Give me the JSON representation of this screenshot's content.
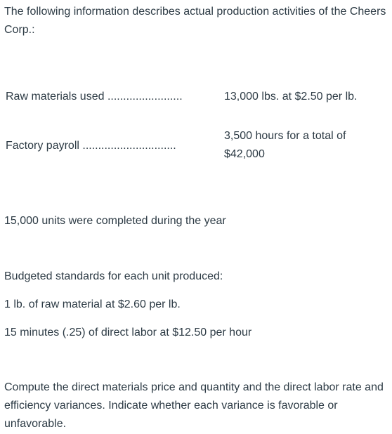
{
  "intro": "The following information describes actual production activities of the Cheers Corp.:",
  "actuals": {
    "raw_materials": {
      "label": "Raw materials used ........................",
      "value": "13,000 lbs. at $2.50 per lb."
    },
    "factory_payroll": {
      "label": "Factory payroll ..............................",
      "value": "3,500 hours for a total of $42,000"
    }
  },
  "units_completed": "15,000 units were completed during the year",
  "standards": {
    "heading": "Budgeted standards for each unit produced:",
    "material": "1 lb. of raw material at $2.60 per lb.",
    "labor": "15 minutes (.25) of direct labor at $12.50 per hour"
  },
  "instructions": "Compute the direct materials price and quantity and the direct labor rate and efficiency variances. Indicate whether each variance is favorable or unfavorable."
}
